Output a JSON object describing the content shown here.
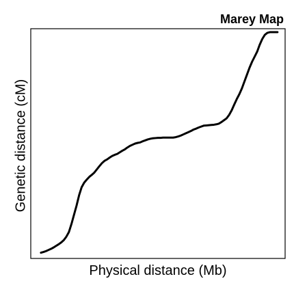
{
  "chart_data": {
    "type": "line",
    "title": "Marey Map",
    "xlabel": "Physical distance (Mb)",
    "ylabel": "Genetic distance (cM)",
    "xlim": [
      0,
      100
    ],
    "ylim": [
      0,
      100
    ],
    "grid": false,
    "colors": {
      "line": "#000000",
      "axes": "#000000",
      "background": "#ffffff"
    },
    "series": [
      {
        "x": [
          4,
          5,
          6,
          7,
          8,
          9,
          10,
          11,
          12,
          13,
          14,
          15,
          16,
          17,
          18,
          19,
          20,
          21,
          22,
          23,
          24,
          25,
          26,
          27,
          28,
          29,
          30,
          31,
          32,
          33,
          34,
          35,
          36,
          37,
          38,
          39,
          40,
          41,
          42,
          43,
          44,
          45,
          46,
          47,
          48,
          49,
          50,
          51,
          52,
          53,
          54,
          55,
          56,
          57,
          58,
          59,
          60,
          61,
          62,
          63,
          64,
          65,
          66,
          67,
          68,
          69,
          70,
          71,
          72,
          73,
          74,
          75,
          76,
          77,
          78,
          79,
          80,
          81,
          82,
          83,
          84,
          85,
          86,
          87,
          88,
          89,
          90,
          91,
          92,
          93,
          94,
          95,
          96,
          97
        ],
        "y": [
          2.5,
          2.8,
          3.2,
          3.7,
          4.2,
          4.8,
          5.5,
          6.2,
          7.0,
          8.0,
          9.5,
          11.5,
          15.0,
          19.0,
          23.0,
          27.5,
          31.0,
          33.0,
          34.3,
          35.5,
          36.4,
          37.4,
          38.8,
          40.2,
          41.5,
          42.5,
          43.1,
          43.9,
          44.6,
          45.1,
          45.5,
          46.2,
          46.9,
          47.5,
          48.3,
          49.0,
          49.5,
          50.0,
          50.3,
          50.5,
          51.0,
          51.4,
          51.8,
          52.1,
          52.3,
          52.4,
          52.5,
          52.5,
          52.6,
          52.6,
          52.6,
          52.6,
          52.6,
          52.8,
          53.1,
          53.5,
          54.0,
          54.5,
          55.0,
          55.5,
          56.1,
          56.5,
          57.0,
          57.4,
          57.8,
          57.9,
          58.0,
          58.1,
          58.2,
          58.4,
          58.7,
          59.4,
          60.2,
          61.0,
          62.5,
          64.5,
          67.0,
          69.4,
          71.5,
          74.0,
          77.0,
          80.0,
          83.0,
          85.6,
          87.8,
          90.0,
          93.0,
          95.5,
          97.3,
          98.2,
          98.5,
          98.5,
          98.5,
          98.5
        ]
      }
    ]
  }
}
